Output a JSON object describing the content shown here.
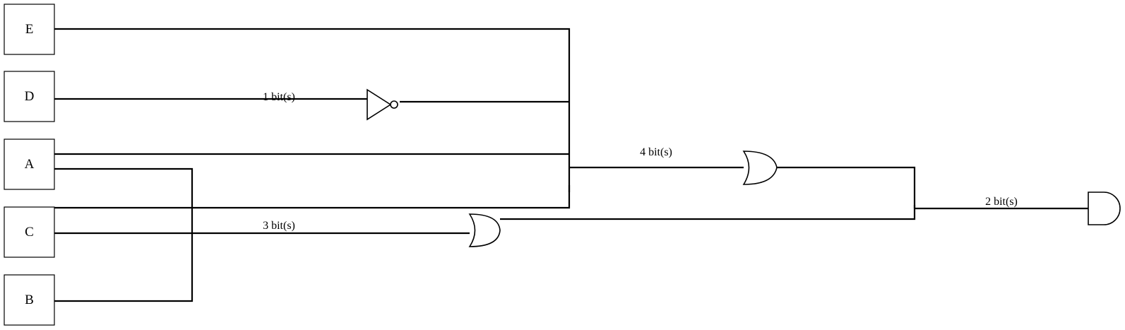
{
  "inputs": {
    "e": "E",
    "d": "D",
    "a": "A",
    "c": "C",
    "b": "B"
  },
  "bus_labels": {
    "not_input": "1 bit(s)",
    "or_lower_input": "3 bit(s)",
    "or_upper_input": "4 bit(s)",
    "and_input": "2 bit(s)"
  },
  "gates": {
    "not_gate": "not-gate-icon",
    "or_gate_lower": "or-gate-icon",
    "or_gate_upper": "or-gate-icon",
    "and_gate": "and-gate-icon"
  },
  "colors": {
    "line": "#000000",
    "background": "#ffffff"
  }
}
